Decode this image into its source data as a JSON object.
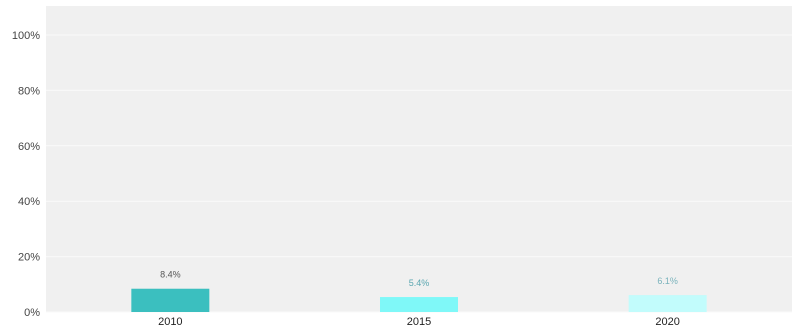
{
  "chart_data": {
    "type": "bar",
    "categories": [
      "2010",
      "2015",
      "2020"
    ],
    "values": [
      8.4,
      5.4,
      6.1
    ],
    "data_labels": [
      "8.4%",
      "5.4%",
      "6.1%"
    ],
    "y_ticks": [
      "0%",
      "20%",
      "40%",
      "60%",
      "80%",
      "100%"
    ],
    "ylim": [
      0,
      100
    ],
    "grid": true,
    "colors": [
      "#3bbfbf",
      "#7ff8f8",
      "#c2fcfc"
    ],
    "label_colors": [
      "#555555",
      "#5aa6b0",
      "#7ab3bc"
    ],
    "plot_background": "#f0f0f0"
  }
}
